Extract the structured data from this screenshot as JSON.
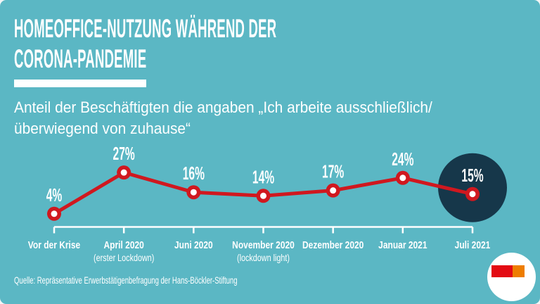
{
  "chart_data": {
    "type": "line",
    "title_lines": [
      "HOMEOFFICE-NUTZUNG WÄHREND DER",
      "CORONA-PANDEMIE"
    ],
    "subtitle_lines": [
      "Anteil der Beschäftigten die angaben „Ich arbeite ausschließlich/",
      "überwiegend von zuhause“"
    ],
    "categories": [
      {
        "label": "Vor der Krise",
        "sub": ""
      },
      {
        "label": "April 2020",
        "sub": "(erster Lockdown)"
      },
      {
        "label": "Juni 2020",
        "sub": ""
      },
      {
        "label": "November 2020",
        "sub": "(lockdown light)"
      },
      {
        "label": "Dezember 2020",
        "sub": ""
      },
      {
        "label": "Januar 2021",
        "sub": ""
      },
      {
        "label": "Juli 2021",
        "sub": ""
      }
    ],
    "values": [
      4,
      27,
      16,
      14,
      17,
      24,
      15
    ],
    "unit": "%",
    "highlight_index": 6,
    "ylim": [
      0,
      30
    ],
    "source": "Quelle: Repräsentative Erwerbstätigenbefragung der Hans-Böckler-Stiftung",
    "colors": {
      "background": "#5bb7c4",
      "line": "#d0181f",
      "marker_center": "#ffffff",
      "highlight_circle": "#16374a",
      "text": "#ffffff"
    }
  },
  "logo": {
    "name": "broadcaster-logo",
    "block_colors": [
      "#e30b13",
      "#ee7d00"
    ]
  }
}
